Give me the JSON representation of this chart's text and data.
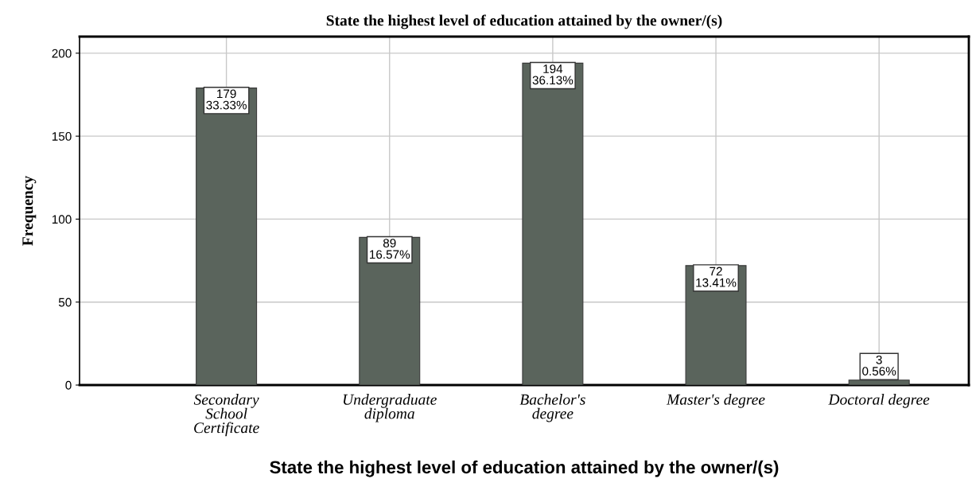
{
  "chart_data": {
    "type": "bar",
    "title": "State the highest level of education attained by the owner/(s)",
    "xlabel": "State the highest level of education attained by the owner/(s)",
    "ylabel": "Frequency",
    "categories": [
      "Secondary\nSchool\nCertificate",
      "Undergraduate\ndiploma",
      "Bachelor's\ndegree",
      "Master's degree",
      "Doctoral degree"
    ],
    "values": [
      179,
      89,
      194,
      72,
      3
    ],
    "value_labels": [
      "179\n33.33%",
      "89\n16.57%",
      "194\n36.13%",
      "72\n13.41%",
      "3\n0.56%"
    ],
    "color": "#5a645c",
    "ylim": [
      0,
      210
    ],
    "yticks": [
      0,
      50,
      100,
      150,
      200
    ],
    "grid": true
  }
}
